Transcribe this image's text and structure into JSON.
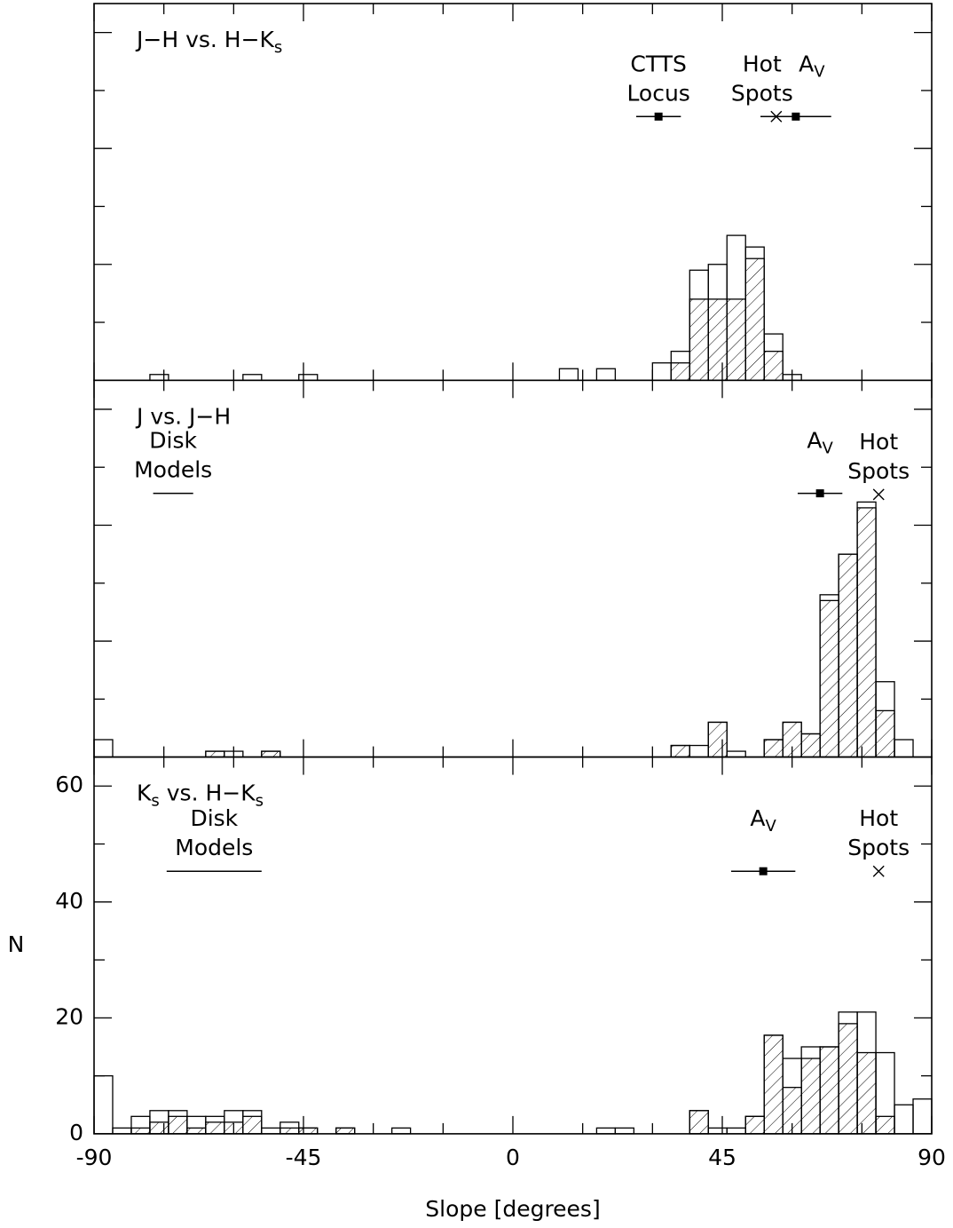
{
  "chart_data": [
    {
      "type": "histogram",
      "title": [
        {
          "text": "J−H vs. H−K",
          "sub": "s"
        }
      ],
      "xlim": [
        -90,
        90
      ],
      "ylim": [
        0,
        65
      ],
      "xticks": [
        -90,
        -45,
        0,
        45,
        90
      ],
      "xticks_minor": [
        -75,
        -60,
        -30,
        -15,
        15,
        30,
        60,
        75
      ],
      "yticks": [
        0,
        20,
        40,
        60
      ],
      "yticks_minor": [
        10,
        30,
        50
      ],
      "tick_labels": false,
      "bins": [
        -90,
        -86,
        -82,
        -78,
        -74,
        -70,
        -66,
        -62,
        -58,
        -54,
        -50,
        -46,
        -42,
        -38,
        -34,
        -30,
        -26,
        -22,
        -18,
        -14,
        -10,
        -6,
        -2,
        2,
        6,
        10,
        14,
        18,
        22,
        26,
        30,
        34,
        38,
        42,
        46,
        50,
        54,
        58,
        62,
        66,
        70,
        74,
        78,
        82,
        86,
        90
      ],
      "series": [
        {
          "style": "open",
          "color": "#000000",
          "values": [
            0,
            0,
            0,
            1,
            0,
            0,
            0,
            0,
            1,
            0,
            0,
            1,
            0,
            0,
            0,
            0,
            0,
            0,
            0,
            0,
            0,
            0,
            0,
            0,
            0,
            2,
            0,
            2,
            0,
            0,
            3,
            5,
            19,
            20,
            25,
            23,
            8,
            1,
            0,
            0,
            0,
            0,
            0,
            0,
            0
          ]
        },
        {
          "style": "hatched",
          "color": "#000000",
          "values": [
            0,
            0,
            0,
            0,
            0,
            0,
            0,
            0,
            0,
            0,
            0,
            0,
            0,
            0,
            0,
            0,
            0,
            0,
            0,
            0,
            0,
            0,
            0,
            0,
            0,
            0,
            0,
            0,
            0,
            0,
            0,
            3,
            14,
            14,
            14,
            21,
            5,
            0,
            0,
            0,
            0,
            0,
            0,
            0,
            0
          ]
        }
      ],
      "annotations": [
        {
          "lines": [
            "CTTS",
            "Locus"
          ],
          "x": 31.3,
          "y": 45.5,
          "xerr": 4.8,
          "symbol": "square",
          "align": "center"
        },
        {
          "lines": [
            "Hot",
            "Spots"
          ],
          "x": 56.6,
          "y": 45.5,
          "symbol": "cross",
          "align": "left"
        },
        {
          "lines": [
            [
              {
                "text": "A",
                "sub": "V"
              }
            ]
          ],
          "x": 60.8,
          "y": 45.5,
          "xerr": 7.6,
          "symbol": "square",
          "align": "right"
        }
      ]
    },
    {
      "type": "histogram",
      "title": "J vs. J−H",
      "xlim": [
        -90,
        90
      ],
      "ylim": [
        0,
        65
      ],
      "xticks": [
        -90,
        -45,
        0,
        45,
        90
      ],
      "xticks_minor": [
        -75,
        -60,
        -30,
        -15,
        15,
        30,
        60,
        75
      ],
      "yticks": [
        0,
        20,
        40,
        60
      ],
      "yticks_minor": [
        10,
        30,
        50
      ],
      "tick_labels": false,
      "bins": [
        -90,
        -86,
        -82,
        -78,
        -74,
        -70,
        -66,
        -62,
        -58,
        -54,
        -50,
        -46,
        -42,
        -38,
        -34,
        -30,
        -26,
        -22,
        -18,
        -14,
        -10,
        -6,
        -2,
        2,
        6,
        10,
        14,
        18,
        22,
        26,
        30,
        34,
        38,
        42,
        46,
        50,
        54,
        58,
        62,
        66,
        70,
        74,
        78,
        82,
        86,
        90
      ],
      "series": [
        {
          "style": "open",
          "color": "#000000",
          "values": [
            3,
            0,
            0,
            0,
            0,
            0,
            1,
            1,
            0,
            1,
            0,
            0,
            0,
            0,
            0,
            0,
            0,
            0,
            0,
            0,
            0,
            0,
            0,
            0,
            0,
            0,
            0,
            0,
            0,
            0,
            0,
            2,
            2,
            6,
            1,
            0,
            3,
            6,
            4,
            28,
            35,
            44,
            13,
            3,
            0
          ]
        },
        {
          "style": "hatched",
          "color": "#000000",
          "values": [
            0,
            0,
            0,
            0,
            0,
            0,
            1,
            0,
            0,
            1,
            0,
            0,
            0,
            0,
            0,
            0,
            0,
            0,
            0,
            0,
            0,
            0,
            0,
            0,
            0,
            0,
            0,
            0,
            0,
            0,
            0,
            2,
            0,
            6,
            0,
            0,
            3,
            6,
            4,
            27,
            35,
            43,
            8,
            0,
            0
          ]
        }
      ],
      "annotations": [
        {
          "lines": [
            "Disk",
            "Models"
          ],
          "x": -73,
          "y": 45.5,
          "xerr": 4.3,
          "symbol": "line",
          "align": "center"
        },
        {
          "lines": [
            [
              {
                "text": "A",
                "sub": "V"
              }
            ]
          ],
          "x": 66,
          "y": 45.5,
          "xerr": 4.8,
          "symbol": "square",
          "align": "center"
        },
        {
          "lines": [
            "Hot",
            "Spots"
          ],
          "x": 78.6,
          "y": 45.3,
          "symbol": "cross",
          "align": "center"
        }
      ]
    },
    {
      "type": "histogram",
      "title": [
        {
          "text": "K",
          "sub": "s"
        },
        {
          "text": " vs. H−K",
          "sub": "s"
        }
      ],
      "xlabel": "Slope  [degrees]",
      "ylabel": "N",
      "xlim": [
        -90,
        90
      ],
      "ylim": [
        0,
        65
      ],
      "xticks": [
        -90,
        -45,
        0,
        45,
        90
      ],
      "xticks_minor": [
        -75,
        -60,
        -30,
        -15,
        15,
        30,
        60,
        75
      ],
      "yticks": [
        0,
        20,
        40,
        60
      ],
      "yticks_minor": [
        10,
        30,
        50
      ],
      "tick_labels": true,
      "bins": [
        -90,
        -86,
        -82,
        -78,
        -74,
        -70,
        -66,
        -62,
        -58,
        -54,
        -50,
        -46,
        -42,
        -38,
        -34,
        -30,
        -26,
        -22,
        -18,
        -14,
        -10,
        -6,
        -2,
        2,
        6,
        10,
        14,
        18,
        22,
        26,
        30,
        34,
        38,
        42,
        46,
        50,
        54,
        58,
        62,
        66,
        70,
        74,
        78,
        82,
        86,
        90
      ],
      "series": [
        {
          "style": "open",
          "color": "#000000",
          "values": [
            10,
            1,
            3,
            4,
            4,
            3,
            3,
            4,
            4,
            1,
            2,
            1,
            0,
            1,
            0,
            0,
            1,
            0,
            0,
            0,
            0,
            0,
            0,
            0,
            0,
            0,
            0,
            1,
            1,
            0,
            0,
            0,
            4,
            1,
            1,
            3,
            17,
            13,
            15,
            15,
            21,
            21,
            14,
            5,
            6
          ]
        },
        {
          "style": "hatched",
          "color": "#000000",
          "values": [
            0,
            0,
            1,
            2,
            3,
            1,
            2,
            2,
            3,
            0,
            1,
            1,
            0,
            1,
            0,
            0,
            0,
            0,
            0,
            0,
            0,
            0,
            0,
            0,
            0,
            0,
            0,
            0,
            0,
            0,
            0,
            0,
            4,
            0,
            0,
            3,
            17,
            8,
            13,
            15,
            19,
            14,
            3,
            0,
            0
          ]
        }
      ],
      "annotations": [
        {
          "lines": [
            "Disk",
            "Models"
          ],
          "x": -64.2,
          "y": 45.3,
          "xerr": 10.2,
          "symbol": "line",
          "align": "center"
        },
        {
          "lines": [
            [
              {
                "text": "A",
                "sub": "V"
              }
            ]
          ],
          "x": 53.8,
          "y": 45.3,
          "xerr": 6.9,
          "symbol": "square",
          "align": "center"
        },
        {
          "lines": [
            "Hot",
            "Spots"
          ],
          "x": 78.6,
          "y": 45.3,
          "symbol": "cross",
          "align": "center"
        }
      ]
    }
  ]
}
